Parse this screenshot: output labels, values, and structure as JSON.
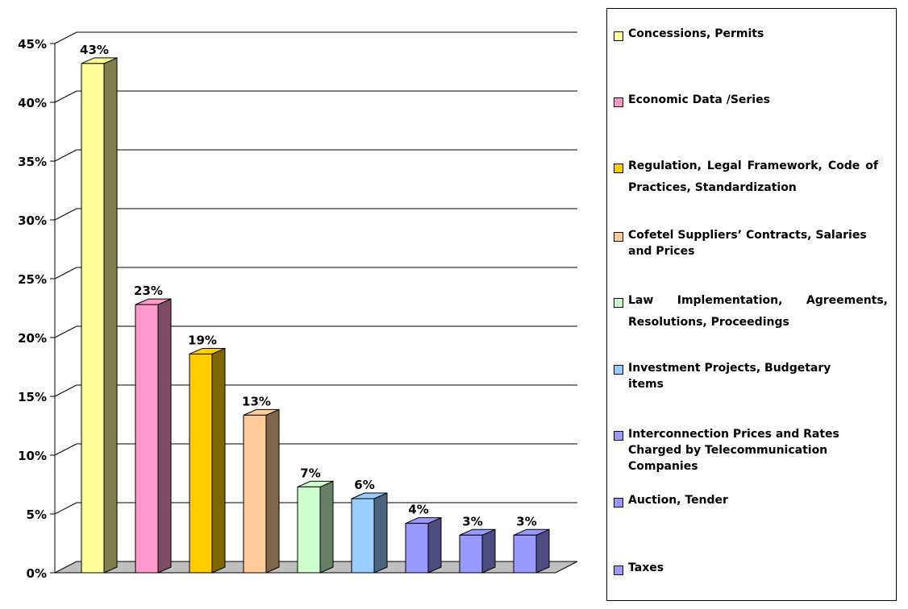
{
  "chart_data": {
    "type": "bar",
    "categories": [
      "Concessions, Permits",
      "Economic Data /Series",
      "Regulation, Legal Framework, Code of Practices, Standardization",
      "Cofetel Suppliers’ Contracts, Salaries and Prices",
      "Law Implementation, Agreements, Resolutions, Proceedings",
      "Investment Projects,  Budgetary items",
      "Interconnection Prices and Rates Charged by Telecommunication Companies",
      "Auction, Tender",
      "Taxes"
    ],
    "values": [
      43.3,
      22.8,
      18.6,
      13.4,
      7.3,
      6.3,
      4.2,
      3.2,
      3.2
    ],
    "data_labels": [
      "43%",
      "23%",
      "19%",
      "13%",
      "7%",
      "6%",
      "4%",
      "3%",
      "3%"
    ],
    "colors": [
      "#FFFF99",
      "#FF99CC",
      "#FFCC00",
      "#FFCC99",
      "#CCFFCC",
      "#99CCFF",
      "#9999FF",
      "#9999FF",
      "#9999FF"
    ],
    "side_colors": [
      "#7F7F4C",
      "#7F4C66",
      "#7F6600",
      "#7F664C",
      "#667F66",
      "#4C667F",
      "#4C4C7F",
      "#4C4C7F",
      "#4C4C7F"
    ],
    "yticks": [
      "0%",
      "5%",
      "10%",
      "15%",
      "20%",
      "25%",
      "30%",
      "35%",
      "40%",
      "45%"
    ],
    "ylim": [
      0,
      45
    ],
    "title": "",
    "xlabel": "",
    "ylabel": "",
    "grid": true,
    "legend_position": "right"
  }
}
